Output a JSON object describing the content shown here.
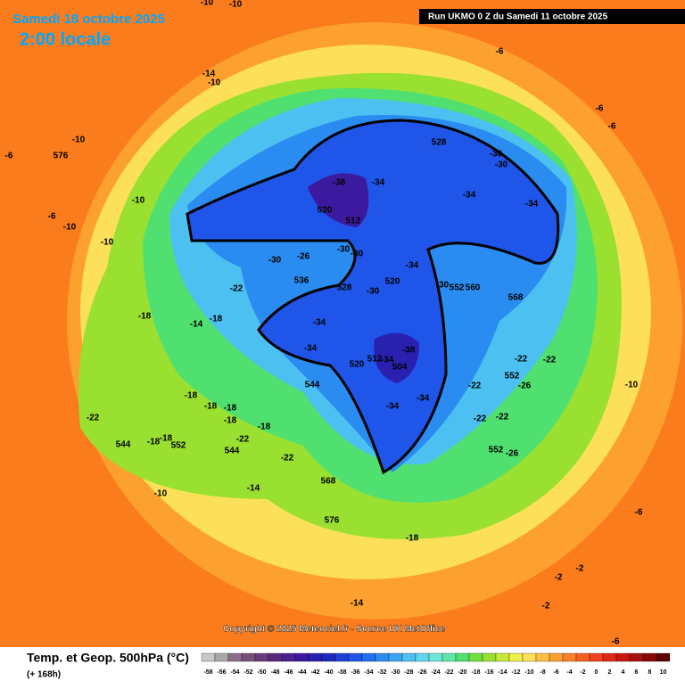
{
  "header": {
    "title": "Samedi 18 octobre 2025",
    "time": "2:00 locale",
    "run": "Run UKMO 0 Z du Samedi 11 octobre 2025"
  },
  "map": {
    "labels": [
      -10,
      -10,
      -14,
      -10,
      -6,
      576,
      -10,
      -10,
      -10,
      -10,
      -6,
      528,
      -30,
      -30,
      -34,
      -34,
      -38,
      -34,
      520,
      512,
      -30,
      -30,
      -34,
      520,
      -30,
      552,
      560,
      568,
      -30,
      -26,
      536,
      528,
      -30,
      -22,
      -34,
      -34,
      -38,
      -34,
      504,
      512,
      520,
      -34,
      -34,
      544,
      -22,
      -22,
      -22,
      -26,
      552,
      -22,
      -22,
      552,
      -26,
      -18,
      -14,
      -18,
      -18,
      -18,
      -18,
      -18,
      -18,
      -22,
      544,
      -18,
      -18,
      552,
      -22,
      544,
      -22,
      568,
      -14,
      -10,
      576,
      -18,
      -14,
      -10,
      -6,
      -6,
      -6,
      -6,
      -2,
      -2,
      -2,
      -6
    ]
  },
  "footer": {
    "copyright": "Copyright © 2025 Meteociel.fr - Source UK MetOffice",
    "legend_title": "Temp. et Geop. 500hPa (°C)",
    "lead": "(+ 168h)"
  },
  "colorbar": {
    "values": [
      -58,
      -56,
      -54,
      -52,
      -50,
      -48,
      -46,
      -44,
      -42,
      -40,
      -38,
      -36,
      -34,
      -32,
      -30,
      -28,
      -26,
      -24,
      -22,
      -20,
      -18,
      -16,
      -14,
      -12,
      -10,
      -8,
      -6,
      -4,
      -2,
      0,
      2,
      4,
      6,
      8,
      10
    ],
    "colors": [
      "#c8c8c8",
      "#a8a8a8",
      "#8c6e8c",
      "#7a4f7a",
      "#6b3a7a",
      "#5a2a80",
      "#4b2090",
      "#3c1aa0",
      "#2a20b0",
      "#1a2cc0",
      "#1f3fd6",
      "#1f55e8",
      "#2070f0",
      "#2a8cf0",
      "#3aa6f2",
      "#4cc0f0",
      "#5fd6ee",
      "#6ee6d8",
      "#5ee8a8",
      "#50e070",
      "#6ee040",
      "#9ae030",
      "#c6e83a",
      "#eef04a",
      "#fde05a",
      "#fdc040",
      "#fca030",
      "#fb8028",
      "#f86020",
      "#f04020",
      "#e02818",
      "#c81810",
      "#a81010",
      "#880808",
      "#600000"
    ]
  }
}
